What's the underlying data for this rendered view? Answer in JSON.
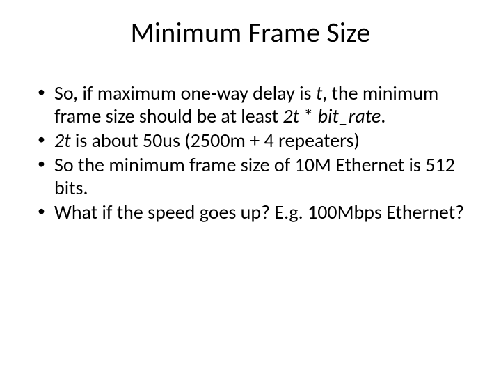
{
  "title": "Minimum Frame Size",
  "bullets": [
    {
      "pre": "So, if maximum one-way delay is ",
      "i1": "t",
      "mid1": ", the minimum frame size should be at least ",
      "i2": "2t",
      "mid2": " * ",
      "i3": "bit_rate",
      "post": "."
    },
    {
      "i1": "2t",
      "post": " is about 50us (2500m + 4 repeaters)"
    },
    {
      "text": "So the minimum frame size of 10M Ethernet is 512 bits."
    },
    {
      "text": "What if the speed goes up? E.g. 100Mbps Ethernet?"
    }
  ]
}
